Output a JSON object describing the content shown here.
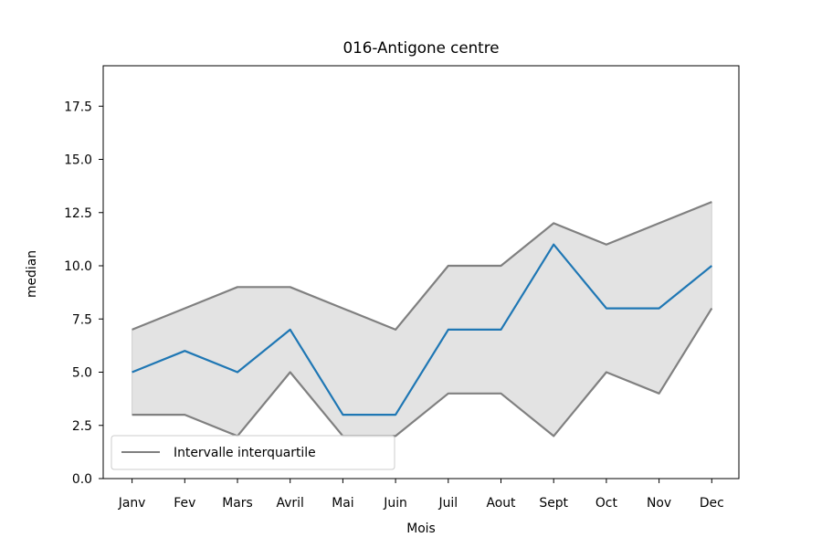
{
  "chart_data": {
    "type": "line",
    "title": "016-Antigone centre",
    "xlabel": "Mois",
    "ylabel": "median",
    "categories": [
      "Janv",
      "Fev",
      "Mars",
      "Avril",
      "Mai",
      "Juin",
      "Juil",
      "Aout",
      "Sept",
      "Oct",
      "Nov",
      "Dec"
    ],
    "series": [
      {
        "values": [
          5,
          6,
          5,
          7,
          3,
          3,
          7,
          7,
          11,
          8,
          8,
          10
        ],
        "color": "#1f77b4"
      },
      {
        "name": "Intervalle interquartile",
        "role": "upper",
        "values": [
          7,
          8,
          9,
          9,
          8,
          7,
          10,
          10,
          12,
          11,
          12,
          13
        ],
        "color": "#808080"
      },
      {
        "role": "lower",
        "values": [
          3,
          3,
          2,
          5,
          2,
          2,
          4,
          4,
          2,
          5,
          4,
          8
        ],
        "color": "#808080"
      }
    ],
    "band": {
      "fill": "#e3e3e3"
    },
    "ylim": [
      0,
      19.4
    ],
    "yticks": [
      "0.0",
      "2.5",
      "5.0",
      "7.5",
      "10.0",
      "12.5",
      "15.0",
      "17.5"
    ],
    "grid": false,
    "legend": {
      "position": "lower-left",
      "entries": [
        "Intervalle interquartile"
      ]
    }
  }
}
